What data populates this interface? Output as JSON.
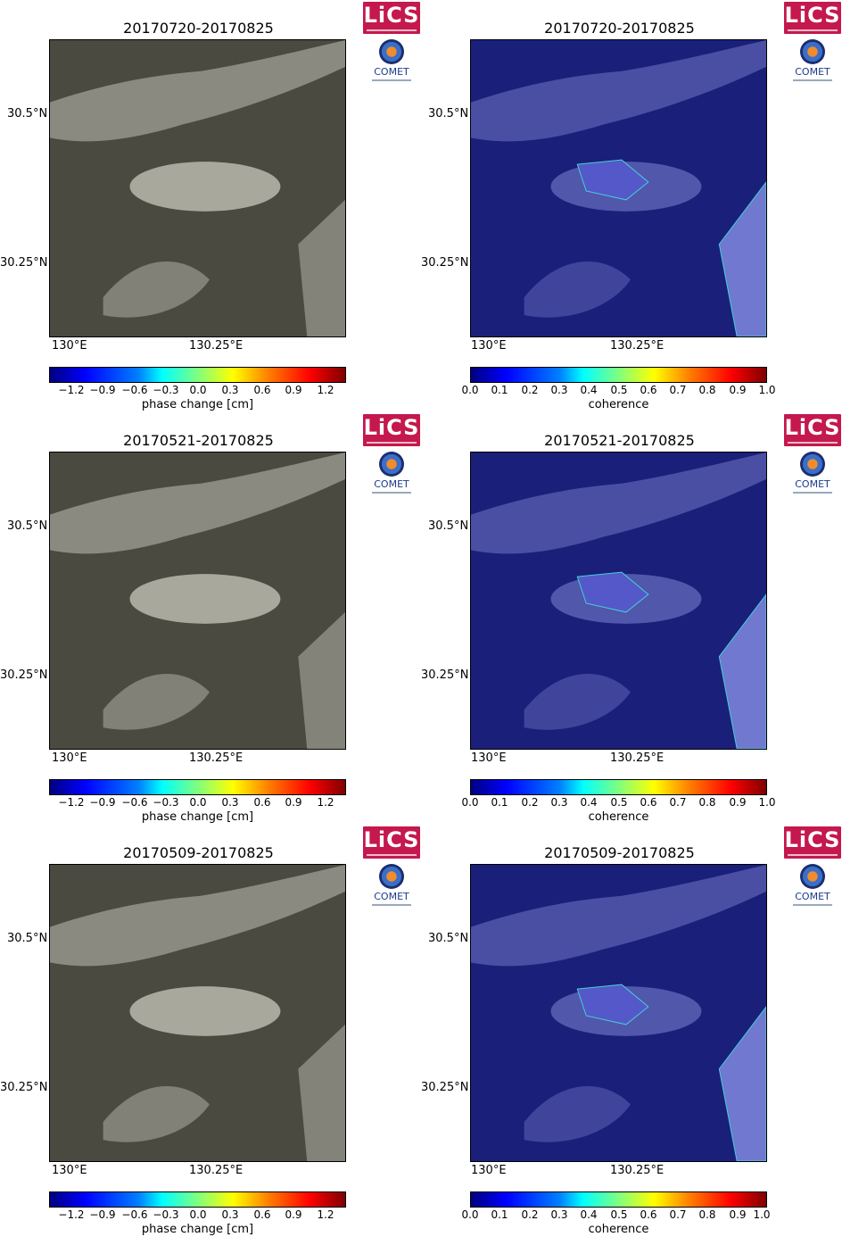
{
  "logos": {
    "lics": "LiCS",
    "comet": "COMET"
  },
  "colors": {
    "lics_bg": "#c4184e",
    "coherence_bg": "#1a1f7a",
    "phase_bg": "#4a4a40"
  },
  "axis": {
    "lat_hi": "30.5°N",
    "lat_lo": "30.25°N",
    "lon_lo": "130°E",
    "lon_hi": "130.25°E"
  },
  "colorbars": {
    "phase": {
      "label": "phase change [cm]",
      "ticks": [
        "−1.2",
        "−0.9",
        "−0.6",
        "−0.3",
        "0.0",
        "0.3",
        "0.6",
        "0.9",
        "1.2"
      ]
    },
    "coherence": {
      "label": "coherence",
      "ticks": [
        "0.0",
        "0.1",
        "0.2",
        "0.3",
        "0.4",
        "0.5",
        "0.6",
        "0.7",
        "0.8",
        "0.9",
        "1.0"
      ]
    }
  },
  "panels": [
    {
      "title": "20170720-20170825",
      "type": "phase"
    },
    {
      "title": "20170720-20170825",
      "type": "coherence"
    },
    {
      "title": "20170521-20170825",
      "type": "phase"
    },
    {
      "title": "20170521-20170825",
      "type": "coherence"
    },
    {
      "title": "20170509-20170825",
      "type": "phase"
    },
    {
      "title": "20170509-20170825",
      "type": "coherence"
    }
  ]
}
